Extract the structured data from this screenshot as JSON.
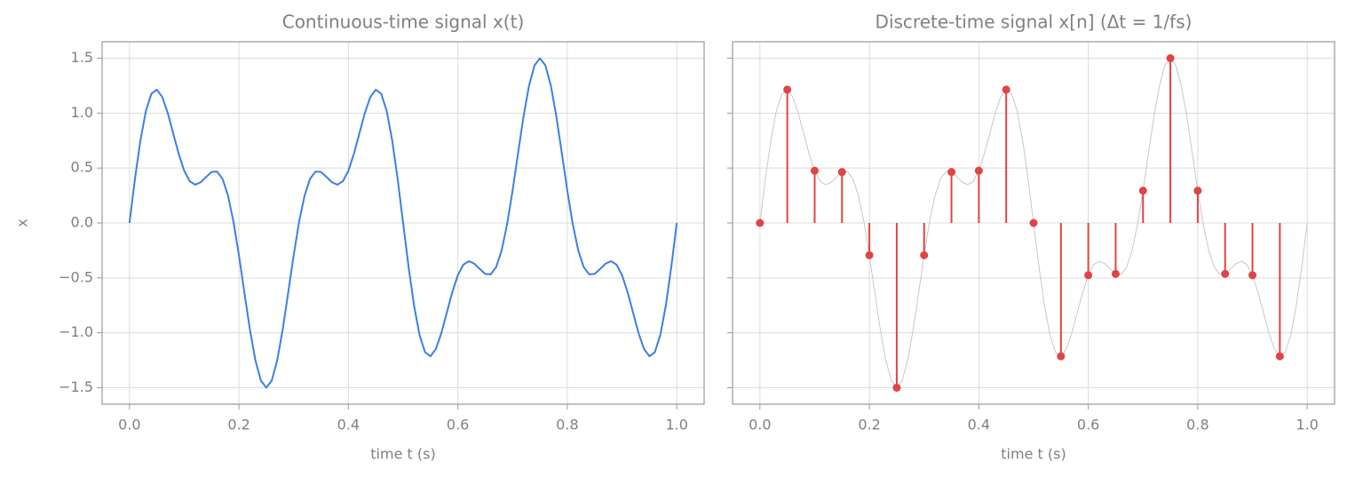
{
  "chart_data": [
    {
      "type": "line",
      "title": "Continuous-time signal x(t)",
      "xlabel": "time t (s)",
      "ylabel": "x",
      "color": "#3b7fe6",
      "grid": true,
      "x": [
        0,
        0.01,
        0.02,
        0.03,
        0.04,
        0.05,
        0.06,
        0.07,
        0.08,
        0.09,
        0.1,
        0.11,
        0.12,
        0.13,
        0.14,
        0.15,
        0.16,
        0.17,
        0.18,
        0.19,
        0.2,
        0.21,
        0.22,
        0.23,
        0.24,
        0.25,
        0.26,
        0.27,
        0.28,
        0.29,
        0.3,
        0.31,
        0.32,
        0.33,
        0.34,
        0.35,
        0.36,
        0.37,
        0.38,
        0.39,
        0.4,
        0.41,
        0.42,
        0.43,
        0.44,
        0.45,
        0.46,
        0.47,
        0.48,
        0.49,
        0.5,
        0.51,
        0.52,
        0.53,
        0.54,
        0.55,
        0.56,
        0.57,
        0.58,
        0.59,
        0.6,
        0.61,
        0.62,
        0.63,
        0.64,
        0.65,
        0.66,
        0.67,
        0.68,
        0.69,
        0.7,
        0.71,
        0.72,
        0.73,
        0.74,
        0.75,
        0.76,
        0.77,
        0.78,
        0.79,
        0.8,
        0.81,
        0.82,
        0.83,
        0.84,
        0.85,
        0.86,
        0.87,
        0.88,
        0.89,
        0.9,
        0.91,
        0.92,
        0.93,
        0.94,
        0.95,
        0.96,
        0.97,
        0.98,
        0.99,
        1.0
      ],
      "values": [
        0,
        0.4,
        0.753,
        1.02,
        1.176,
        1.214,
        1.146,
        1.0,
        0.814,
        0.628,
        0.476,
        0.38,
        0.348,
        0.37,
        0.419,
        0.464,
        0.468,
        0.402,
        0.25,
        0.012,
        -0.294,
        -0.635,
        -0.969,
        -1.249,
        -1.435,
        -1.5,
        -1.435,
        -1.249,
        -0.969,
        -0.635,
        -0.294,
        0.012,
        0.25,
        0.402,
        0.468,
        0.464,
        0.419,
        0.37,
        0.348,
        0.38,
        0.476,
        0.628,
        0.814,
        1.0,
        1.146,
        1.214,
        1.176,
        1.02,
        0.753,
        0.4,
        0,
        -0.4,
        -0.753,
        -1.02,
        -1.176,
        -1.214,
        -1.146,
        -1.0,
        -0.814,
        -0.628,
        -0.476,
        -0.38,
        -0.348,
        -0.37,
        -0.419,
        -0.464,
        -0.468,
        -0.402,
        -0.25,
        -0.012,
        0.294,
        0.635,
        0.969,
        1.249,
        1.435,
        1.5,
        1.435,
        1.249,
        0.969,
        0.635,
        0.294,
        -0.012,
        -0.25,
        -0.402,
        -0.468,
        -0.464,
        -0.419,
        -0.37,
        -0.348,
        -0.38,
        -0.476,
        -0.628,
        -0.814,
        -1.0,
        -1.146,
        -1.214,
        -1.176,
        -1.02,
        -0.753,
        -0.4,
        0
      ],
      "xlim": [
        -0.05,
        1.05
      ],
      "ylim": [
        -1.65,
        1.65
      ],
      "xticks": [
        {
          "value": 0,
          "label": "0.0"
        },
        0.2,
        0.4,
        0.6,
        0.8,
        {
          "value": 1,
          "label": "1.0"
        }
      ],
      "yticks": [
        {
          "value": -1.5,
          "label": "−1.5"
        },
        {
          "value": -1,
          "label": "−1.0"
        },
        {
          "value": -0.5,
          "label": "−0.5"
        },
        {
          "value": 0,
          "label": "0.0"
        },
        0.5,
        {
          "value": 1,
          "label": "1.0"
        },
        1.5
      ]
    },
    {
      "type": "stem",
      "title": "Discrete-time signal x[n] (Δt = 1/fs)",
      "xlabel": "time t (s)",
      "color": "#e04444",
      "curve_color": "#c8c8c8",
      "grid": true,
      "ytick_labels": false,
      "x": [
        0,
        0.05,
        0.1,
        0.15,
        0.2,
        0.25,
        0.3,
        0.35,
        0.4,
        0.45,
        0.5,
        0.55,
        0.6,
        0.65,
        0.7,
        0.75,
        0.8,
        0.85,
        0.9,
        0.95
      ],
      "values": [
        0,
        1.214,
        0.476,
        0.464,
        -0.294,
        -1.5,
        -0.294,
        0.464,
        0.476,
        1.214,
        0,
        -1.214,
        -0.476,
        -0.464,
        0.294,
        1.5,
        0.294,
        -0.464,
        -0.476,
        -1.214
      ],
      "xlim": [
        -0.05,
        1.05
      ],
      "ylim": [
        -1.65,
        1.65
      ],
      "xticks": [
        {
          "value": 0,
          "label": "0.0"
        },
        0.2,
        0.4,
        0.6,
        0.8,
        {
          "value": 1,
          "label": "1.0"
        }
      ],
      "yticks": [
        -1.5,
        -1,
        -0.5,
        0,
        0.5,
        1,
        1.5
      ]
    }
  ]
}
